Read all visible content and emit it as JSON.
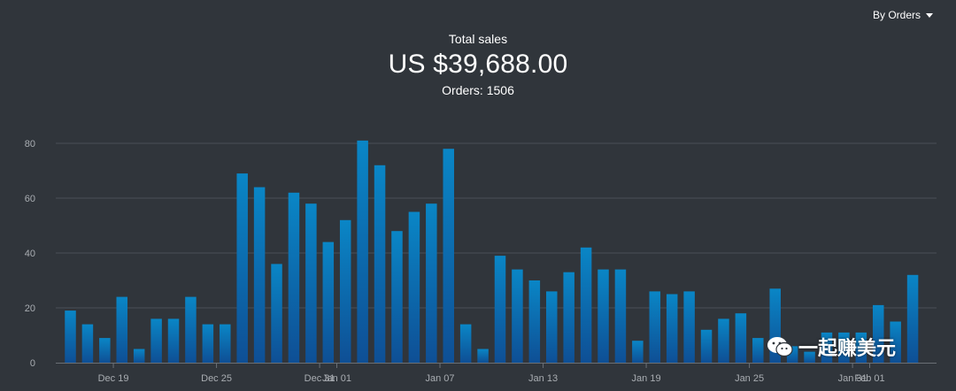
{
  "dropdown": {
    "label": "By Orders"
  },
  "summary": {
    "title": "Total sales",
    "amount": "US $39,688.00",
    "orders": "Orders: 1506"
  },
  "watermark": {
    "text": "一起赚美元"
  },
  "colors": {
    "background": "#30353b",
    "bar_top": "#0a86c6",
    "bar_bottom": "#0e4f95",
    "grid": "#4a5057"
  },
  "chart_data": {
    "type": "bar",
    "title": "",
    "xlabel": "",
    "ylabel": "",
    "ylim": [
      0,
      80
    ],
    "yticks": [
      0,
      20,
      40,
      60,
      80
    ],
    "values": [
      19,
      14,
      9,
      24,
      5,
      16,
      16,
      24,
      14,
      14,
      69,
      64,
      36,
      62,
      58,
      44,
      52,
      81,
      72,
      48,
      55,
      58,
      78,
      14,
      5,
      39,
      34,
      30,
      26,
      33,
      42,
      34,
      34,
      8,
      26,
      25,
      26,
      12,
      16,
      18,
      9,
      27,
      6,
      4,
      11,
      11,
      11,
      21,
      15,
      32
    ],
    "x_tick_labels": [
      {
        "label": "Dec 19",
        "index": 3
      },
      {
        "label": "Dec 25",
        "index": 9
      },
      {
        "label": "Dec 31",
        "index": 15
      },
      {
        "label": "Jan 01",
        "index": 16
      },
      {
        "label": "Jan 07",
        "index": 22
      },
      {
        "label": "Jan 13",
        "index": 28
      },
      {
        "label": "Jan 19",
        "index": 34
      },
      {
        "label": "Jan 25",
        "index": 40
      },
      {
        "label": "Jan 31",
        "index": 46
      },
      {
        "label": "Feb 01",
        "index": 47
      }
    ]
  }
}
